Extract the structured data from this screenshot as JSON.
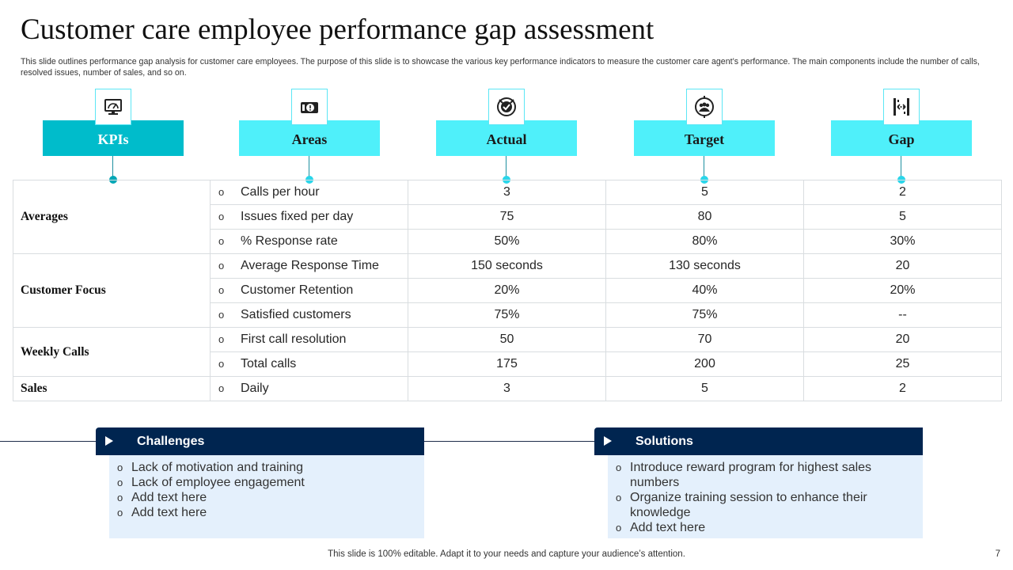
{
  "title": "Customer care employee performance gap assessment",
  "subtitle": "This slide outlines performance gap analysis for customer care employees. The purpose of this slide is to showcase the various key performance indicators to measure the customer care agent’s performance. The main components include the number of calls, resolved issues, number of sales, and so on.",
  "columns": [
    {
      "label": "KPIs",
      "icon": "monitor-gauge-icon"
    },
    {
      "label": "Areas",
      "icon": "info-projector-icon"
    },
    {
      "label": "Actual",
      "icon": "target-check-icon"
    },
    {
      "label": "Target",
      "icon": "team-target-icon"
    },
    {
      "label": "Gap",
      "icon": "gap-measure-icon"
    }
  ],
  "groups": [
    {
      "name": "Averages",
      "rows": [
        {
          "area": "Calls per hour",
          "actual": "3",
          "target": "5",
          "gap": "2"
        },
        {
          "area": "Issues fixed per day",
          "actual": "75",
          "target": "80",
          "gap": "5"
        },
        {
          "area": "% Response rate",
          "actual": "50%",
          "target": "80%",
          "gap": "30%"
        }
      ]
    },
    {
      "name": "Customer Focus",
      "rows": [
        {
          "area": "Average Response Time",
          "actual": "150 seconds",
          "target": "130 seconds",
          "gap": "20"
        },
        {
          "area": "Customer Retention",
          "actual": "20%",
          "target": "40%",
          "gap": "20%"
        },
        {
          "area": "Satisfied customers",
          "actual": "75%",
          "target": "75%",
          "gap": "--"
        }
      ]
    },
    {
      "name": "Weekly Calls",
      "rows": [
        {
          "area": "First call resolution",
          "actual": "50",
          "target": "70",
          "gap": "20"
        },
        {
          "area": "Total calls",
          "actual": "175",
          "target": "200",
          "gap": "25"
        }
      ]
    },
    {
      "name": "Sales",
      "rows": [
        {
          "area": "Daily",
          "actual": "3",
          "target": "5",
          "gap": "2"
        }
      ]
    }
  ],
  "bullet": "o",
  "challenges": {
    "title": "Challenges",
    "items": [
      "Lack of motivation and training",
      "Lack of employee engagement",
      "Add text here",
      "Add text here"
    ]
  },
  "solutions": {
    "title": "Solutions",
    "items": [
      "Introduce  reward program for highest sales numbers",
      "Organize training session to enhance their knowledge",
      "Add text here"
    ]
  },
  "footer": "This slide is 100% editable. Adapt it to your needs and capture your audience’s attention.",
  "page_number": "7",
  "colors": {
    "kpi_header": "#00bccb",
    "header": "#4ff0fa",
    "dark_bar": "#002550",
    "box_bg": "#e4f0fc"
  }
}
